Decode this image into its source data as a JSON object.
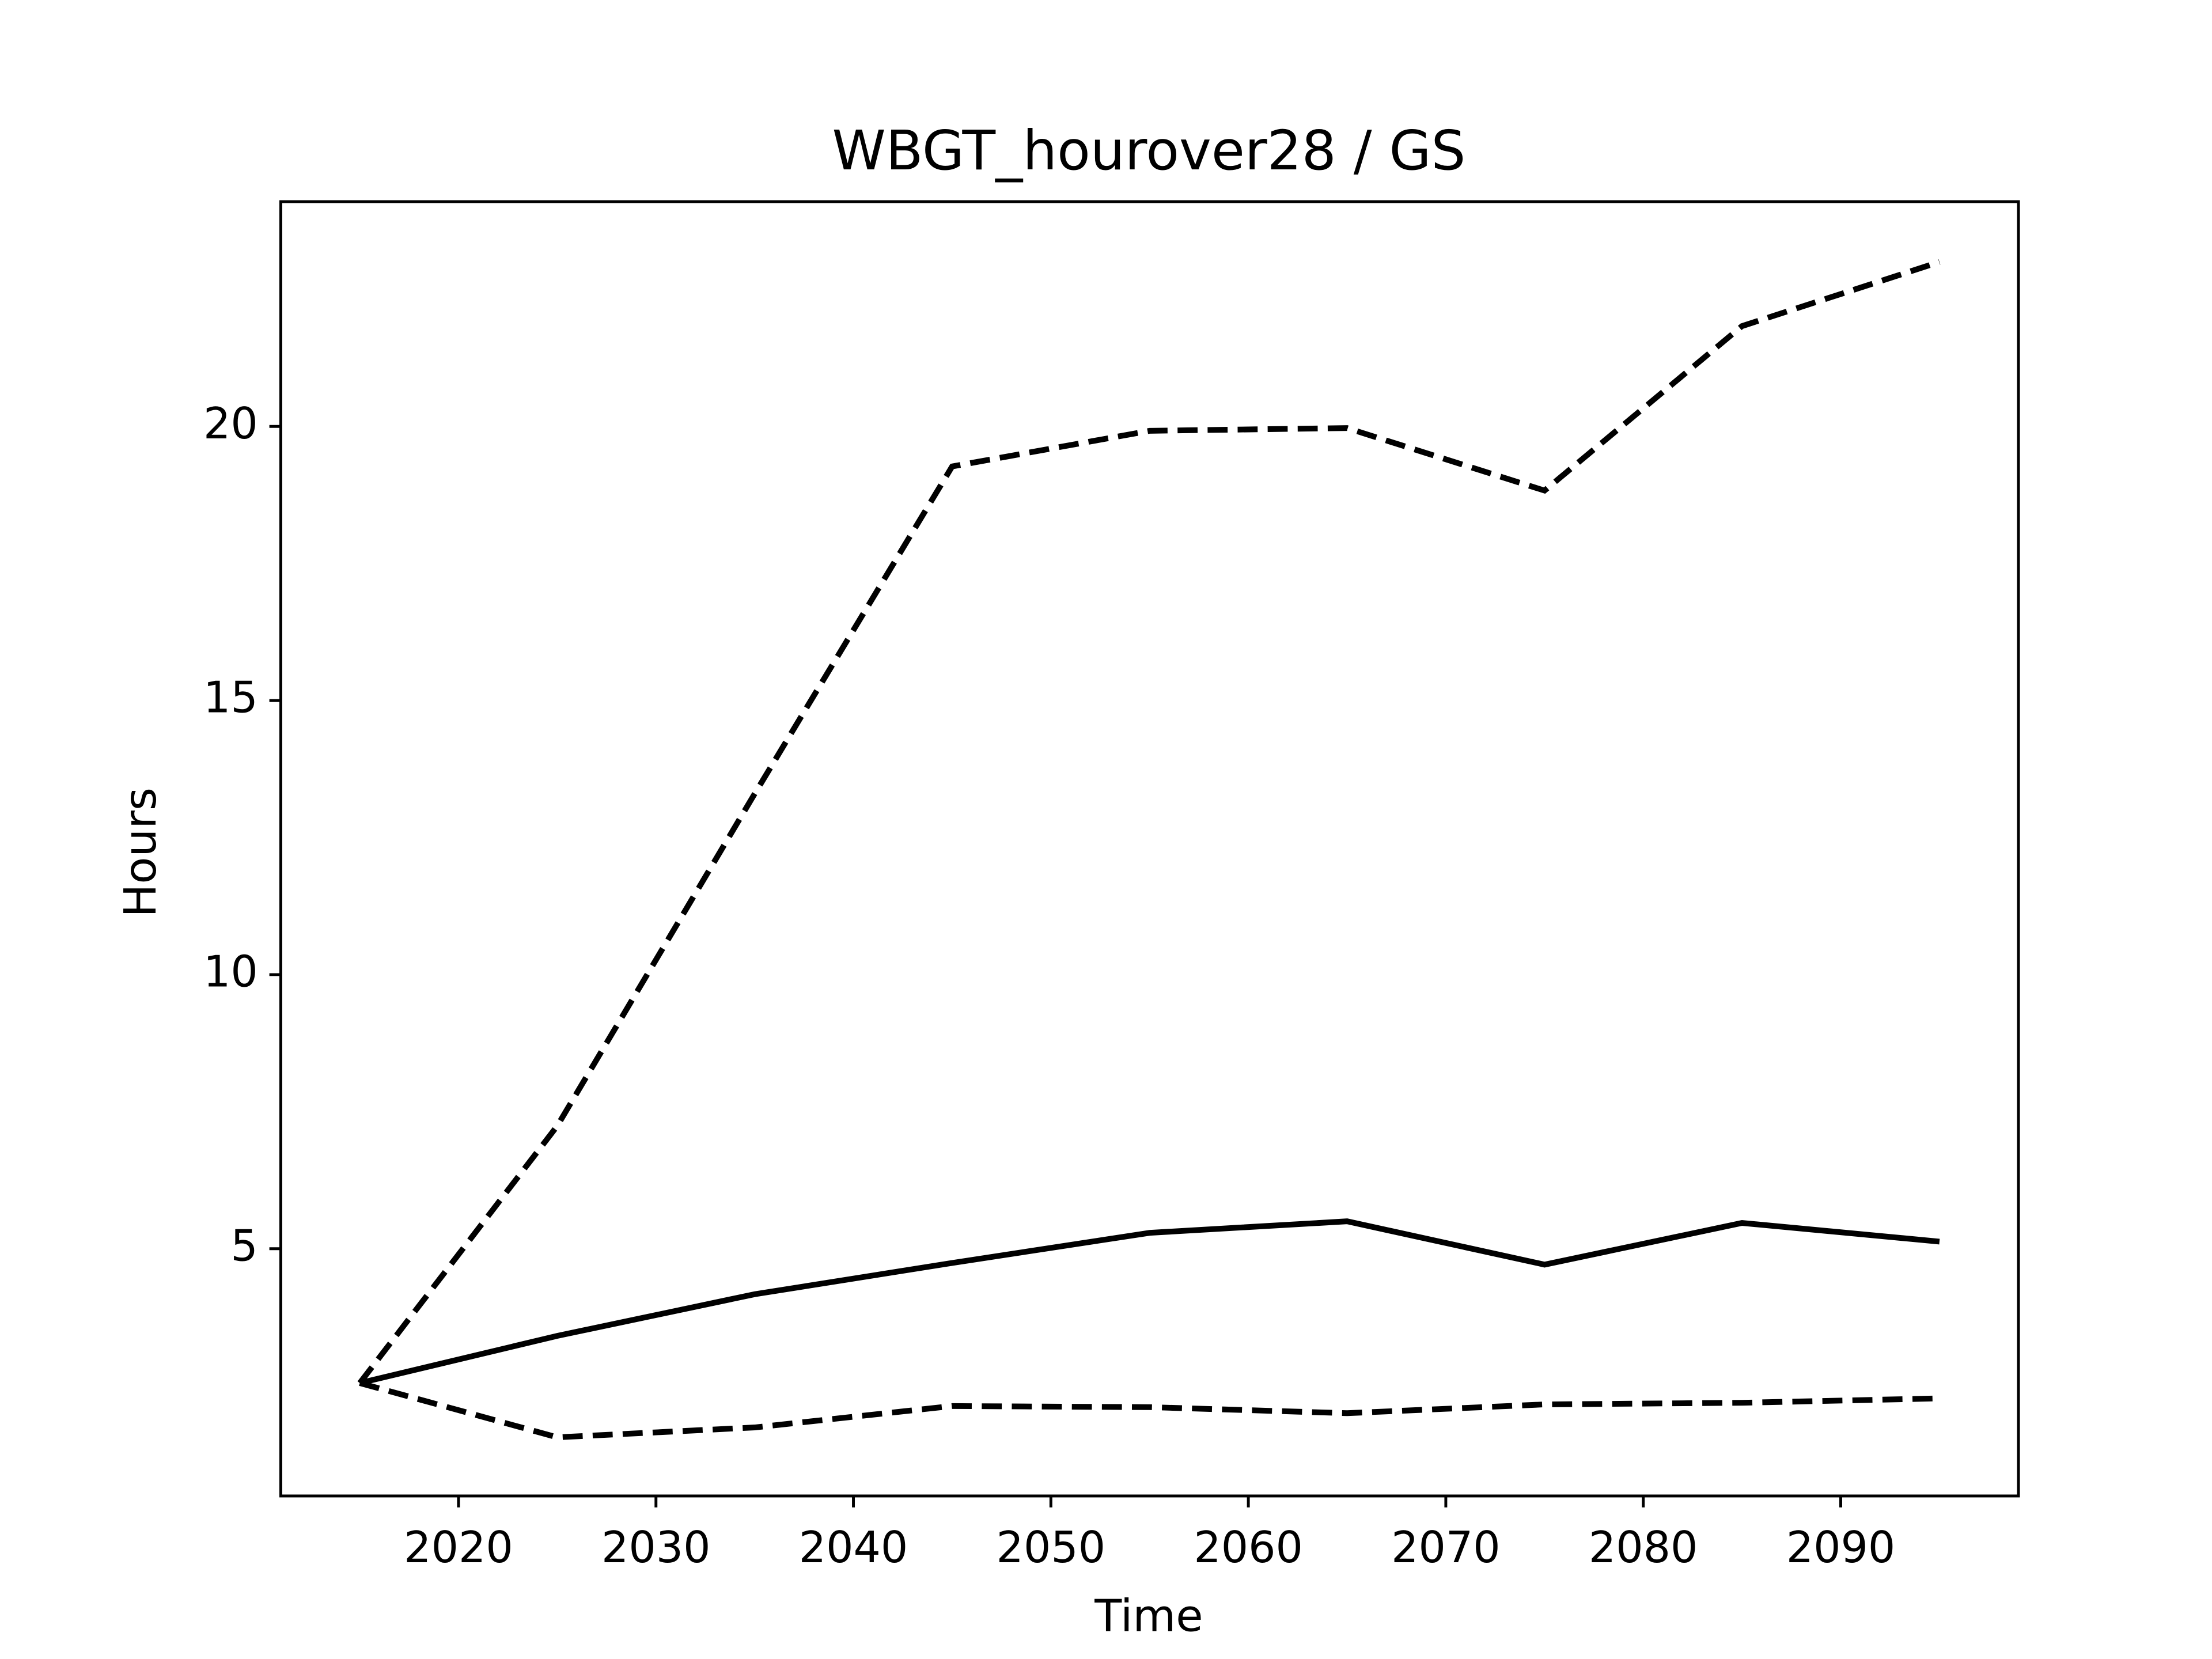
{
  "chart_data": {
    "type": "line",
    "title": "WBGT_hourover28 / GS",
    "xlabel": "Time",
    "ylabel": "Hours",
    "x": [
      2015,
      2025,
      2035,
      2045,
      2055,
      2065,
      2075,
      2085,
      2095
    ],
    "series": [
      {
        "color": "#000000",
        "linestyle": "solid",
        "values": [
          2.55,
          3.41,
          4.17,
          4.74,
          5.29,
          5.5,
          4.71,
          5.47,
          5.13
        ]
      },
      {
        "color": "#000000",
        "linestyle": "dashed",
        "values": [
          2.55,
          7.24,
          13.3,
          19.27,
          19.92,
          19.97,
          18.83,
          21.83,
          23.0
        ]
      },
      {
        "color": "#000000",
        "linestyle": "dashed",
        "values": [
          2.55,
          1.56,
          1.74,
          2.13,
          2.11,
          2.0,
          2.16,
          2.19,
          2.27
        ]
      }
    ],
    "xlim": [
      2011,
      2099
    ],
    "xticks": [
      2020,
      2030,
      2040,
      2050,
      2060,
      2070,
      2080,
      2090
    ],
    "ylim": [
      0.49,
      24.1
    ],
    "yticks": [
      5,
      10,
      15,
      20
    ],
    "grid": false
  }
}
